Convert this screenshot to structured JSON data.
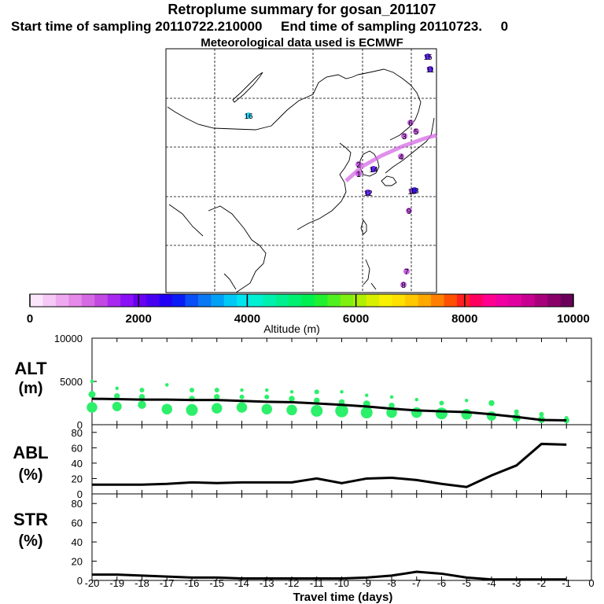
{
  "header": {
    "title": "Retroplume summary for gosan_201107",
    "sampling": "Start time of sampling 20110722.210000     End time of sampling 20110723.     0",
    "met": "Meteorological data used is ECMWF"
  },
  "colorbar": {
    "ticks": [
      "0",
      "2000",
      "4000",
      "6000",
      "8000",
      "10000"
    ],
    "label": "Altitude (m)",
    "colors": [
      "#fce6fc",
      "#f5c8f5",
      "#efa9f0",
      "#e68ae9",
      "#d66ae4",
      "#c24ae2",
      "#a82af0",
      "#8a10f5",
      "#6a00f2",
      "#4800f0",
      "#2200f5",
      "#0a1cf5",
      "#0a4ef5",
      "#0a78f5",
      "#00a0f5",
      "#00c8f5",
      "#00e6f0",
      "#00f0d2",
      "#00f0b0",
      "#00f090",
      "#00f070",
      "#00f050",
      "#20f030",
      "#50f020",
      "#80f010",
      "#b0f000",
      "#d8f000",
      "#f8f000",
      "#ffe000",
      "#ffc800",
      "#ffa800",
      "#ff8000",
      "#ff5000",
      "#ff2020",
      "#ff0060",
      "#ff0090",
      "#f000a0",
      "#e000a0",
      "#c80090",
      "#a8007a",
      "#880068",
      "#6a005a"
    ]
  },
  "map": {
    "particles": [
      {
        "label": "1",
        "color": "#c24ae2"
      },
      {
        "label": "2",
        "color": "#c24ae2"
      },
      {
        "label": "3",
        "color": "#c24ae2"
      },
      {
        "label": "4",
        "color": "#c24ae2"
      },
      {
        "label": "5",
        "color": "#c24ae2"
      },
      {
        "label": "6",
        "color": "#c24ae2"
      },
      {
        "label": "7",
        "color": "#c24ae2"
      },
      {
        "label": "8",
        "color": "#c24ae2"
      },
      {
        "label": "9",
        "color": "#c24ae2"
      },
      {
        "label": "10",
        "color": "#c24ae2"
      },
      {
        "label": "11",
        "color": "#4800f0"
      },
      {
        "label": "12",
        "color": "#4800f0"
      },
      {
        "label": "13",
        "color": "#2200f5"
      },
      {
        "label": "14",
        "color": "#4800f0"
      },
      {
        "label": "15",
        "color": "#4800f0"
      },
      {
        "label": "16",
        "color": "#00c8f5"
      }
    ]
  },
  "panels": {
    "alt": {
      "label": "ALT",
      "unit": "(m)",
      "yticks": [
        "10000",
        "5000",
        "0"
      ]
    },
    "abl": {
      "label": "ABL",
      "unit": "(%)",
      "yticks": [
        "80",
        "60",
        "40",
        "20",
        "0"
      ]
    },
    "str": {
      "label": "STR",
      "unit": "(%)",
      "yticks": [
        "80",
        "60",
        "40",
        "20",
        "0"
      ]
    }
  },
  "xaxis": {
    "label": "Travel time (days)",
    "ticks": [
      "-20",
      "-19",
      "-18",
      "-17",
      "-16",
      "-15",
      "-14",
      "-13",
      "-12",
      "-11",
      "-10",
      "-9",
      "-8",
      "-7",
      "-6",
      "-5",
      "-4",
      "-3",
      "-2",
      "-1",
      "0"
    ]
  },
  "chart_data": [
    {
      "type": "line",
      "title": "ALT",
      "ylabel": "ALT (m)",
      "xlabel": "Travel time (days)",
      "xlim": [
        -20,
        0
      ],
      "ylim": [
        0,
        10000
      ],
      "x": [
        -20,
        -19,
        -18,
        -17,
        -16,
        -15,
        -14,
        -13,
        -12,
        -11,
        -10,
        -9,
        -8,
        -7,
        -6,
        -5,
        -4,
        -3,
        -2,
        -1
      ],
      "values": [
        3000,
        2950,
        2900,
        2900,
        2850,
        2850,
        2750,
        2650,
        2600,
        2450,
        2300,
        2100,
        1850,
        1650,
        1550,
        1450,
        1200,
        900,
        550,
        500
      ],
      "clusters": {
        "color": "#2cf06a",
        "x": [
          -20,
          -20,
          -20,
          -19,
          -19,
          -19,
          -18,
          -18,
          -18,
          -17,
          -17,
          -16,
          -16,
          -16,
          -15,
          -15,
          -15,
          -14,
          -14,
          -14,
          -13,
          -13,
          -13,
          -12,
          -12,
          -12,
          -11,
          -11,
          -11,
          -10,
          -10,
          -10,
          -9,
          -9,
          -9,
          -8,
          -8,
          -8,
          -7,
          -7,
          -6,
          -6,
          -5,
          -5,
          -4,
          -4,
          -3,
          -3,
          -2,
          -2,
          -1,
          -1
        ],
        "y": [
          5000,
          3500,
          2000,
          4200,
          3300,
          2100,
          4000,
          3200,
          2300,
          4600,
          1800,
          4000,
          3000,
          1700,
          4000,
          3200,
          1900,
          4000,
          3200,
          2000,
          4000,
          3200,
          1800,
          3800,
          3000,
          1700,
          3800,
          2800,
          1600,
          3800,
          2600,
          1600,
          3400,
          2400,
          1400,
          3200,
          2200,
          1400,
          2900,
          1400,
          2500,
          1300,
          2800,
          1200,
          2500,
          1000,
          1500,
          800,
          1200,
          600,
          800,
          500
        ],
        "size": [
          3,
          6,
          9,
          3,
          5,
          8,
          4,
          5,
          7,
          3,
          9,
          4,
          5,
          10,
          4,
          5,
          9,
          3,
          4,
          9,
          3,
          4,
          9,
          3,
          5,
          9,
          4,
          5,
          10,
          3,
          5,
          11,
          3,
          6,
          10,
          3,
          5,
          9,
          3,
          9,
          4,
          10,
          3,
          9,
          5,
          8,
          4,
          7,
          4,
          6,
          3,
          5
        ]
      }
    },
    {
      "type": "line",
      "title": "ABL",
      "ylabel": "ABL (%)",
      "xlabel": "Travel time (days)",
      "xlim": [
        -20,
        0
      ],
      "ylim": [
        0,
        90
      ],
      "x": [
        -20,
        -19,
        -18,
        -17,
        -16,
        -15,
        -14,
        -13,
        -12,
        -11,
        -10,
        -9,
        -8,
        -7,
        -6,
        -5,
        -4,
        -3,
        -2,
        -1
      ],
      "values": [
        12,
        12,
        12,
        13,
        15,
        14,
        15,
        15,
        15,
        20,
        14,
        20,
        21,
        18,
        13,
        9,
        24,
        37,
        65,
        64
      ]
    },
    {
      "type": "line",
      "title": "STR",
      "ylabel": "STR (%)",
      "xlabel": "Travel time (days)",
      "xlim": [
        -20,
        0
      ],
      "ylim": [
        0,
        90
      ],
      "x": [
        -20,
        -19,
        -18,
        -17,
        -16,
        -15,
        -14,
        -13,
        -12,
        -11,
        -10,
        -9,
        -8,
        -7,
        -6,
        -5,
        -4,
        -3,
        -2,
        -1
      ],
      "values": [
        6,
        6,
        5,
        4,
        3,
        3,
        2,
        2,
        2,
        2,
        2,
        3,
        5,
        9,
        7,
        3,
        1,
        1,
        1,
        1
      ]
    }
  ]
}
